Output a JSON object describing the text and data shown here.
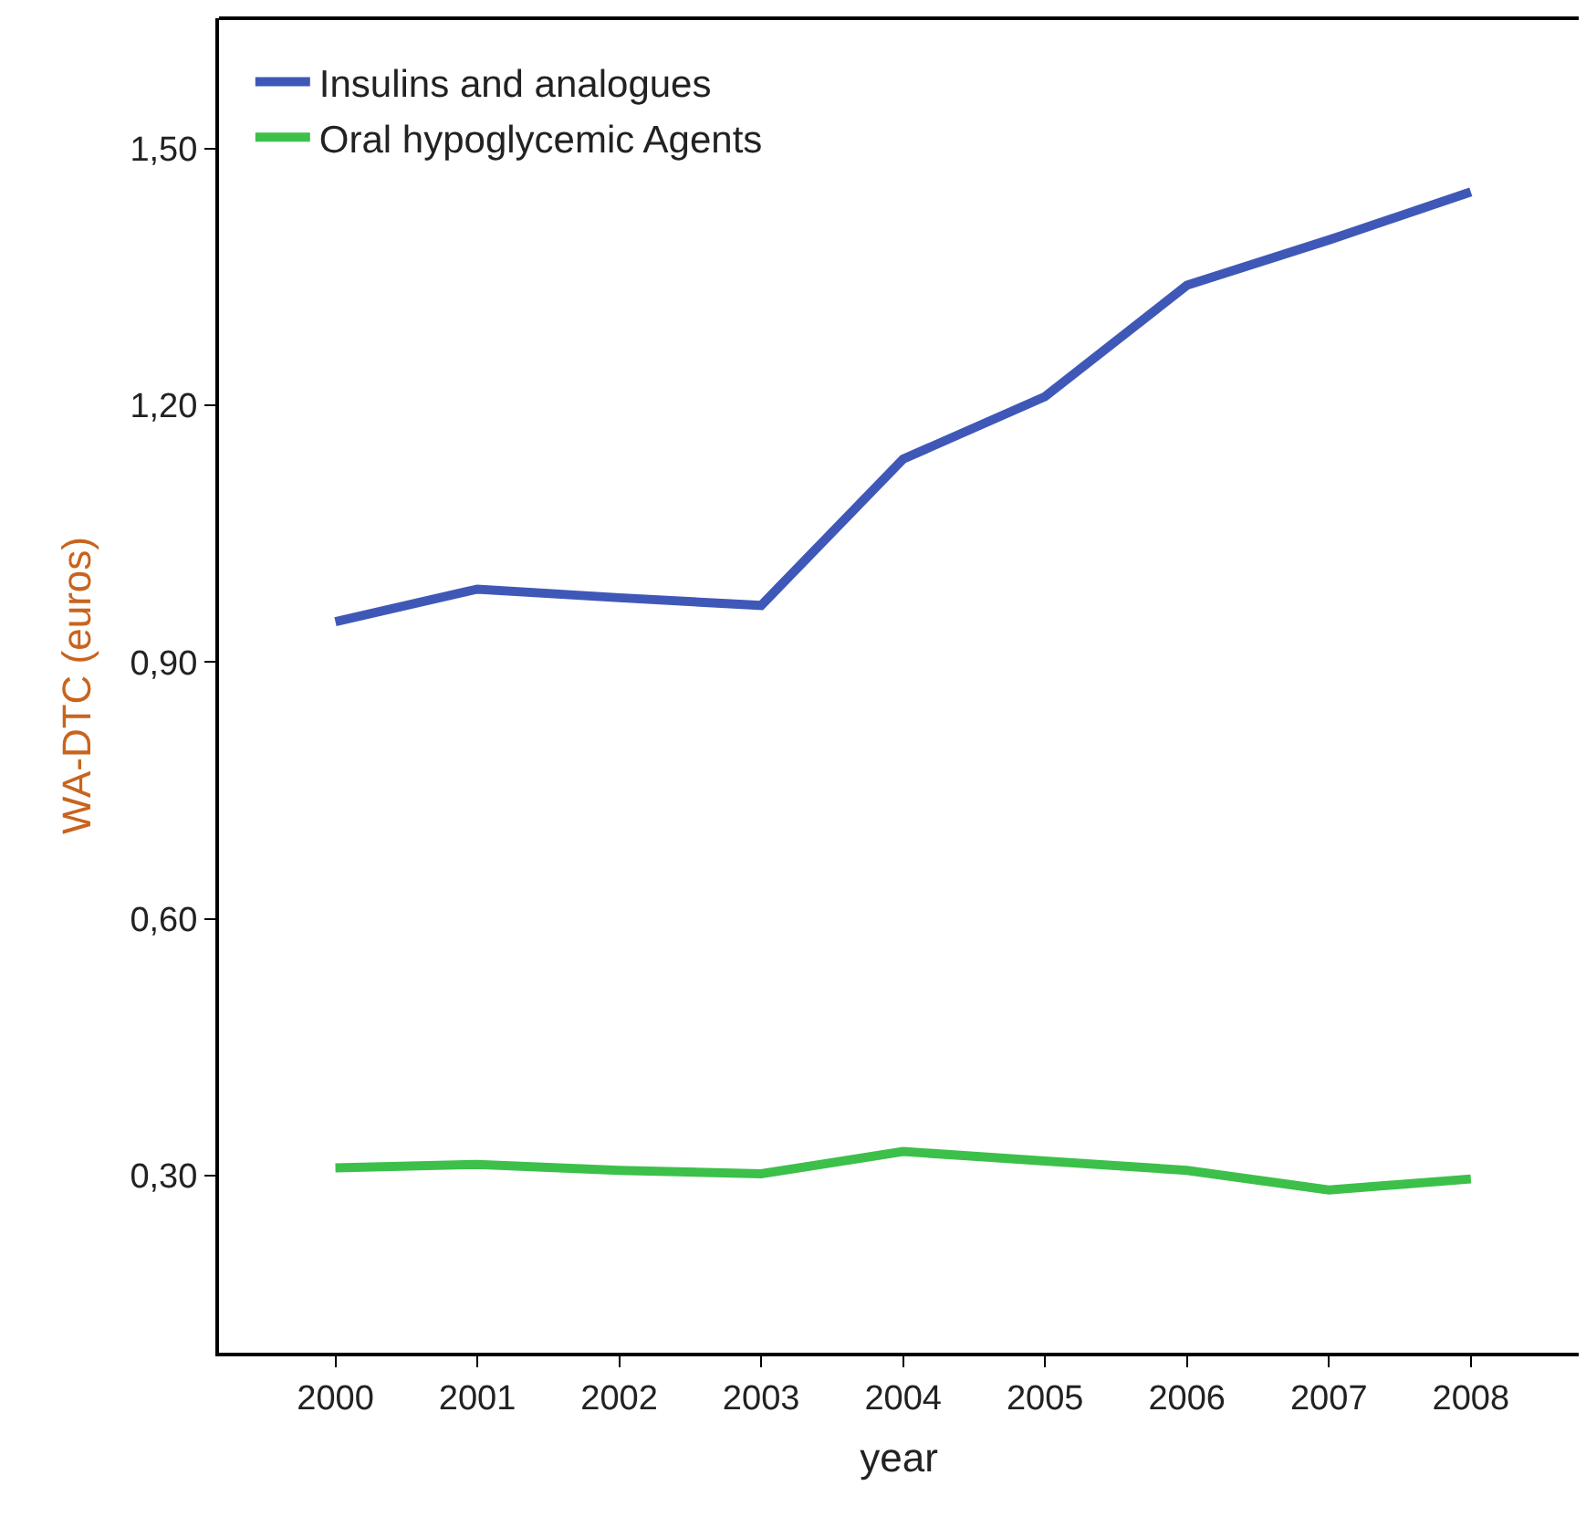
{
  "chart_data": {
    "type": "line",
    "xlabel": "year",
    "ylabel": "WA-DTC (euros)",
    "x": [
      2000,
      2001,
      2002,
      2003,
      2004,
      2005,
      2006,
      2007,
      2008
    ],
    "series": [
      {
        "name": "Insulins and analogues",
        "color": "#3f58b8",
        "values": [
          0.947,
          0.985,
          0.975,
          0.966,
          1.137,
          1.21,
          1.34,
          1.393,
          1.449
        ]
      },
      {
        "name": "Oral hypoglycemic Agents",
        "color": "#3cc04a",
        "values": [
          0.309,
          0.313,
          0.306,
          0.302,
          0.328,
          0.317,
          0.306,
          0.283,
          0.296
        ]
      }
    ],
    "xlim": [
      1999.18,
      2008.76
    ],
    "ylim": [
      0.093,
      1.652
    ],
    "xticks": [
      2000,
      2001,
      2002,
      2003,
      2004,
      2005,
      2006,
      2007,
      2008
    ],
    "yticks": [
      {
        "value": 0.3,
        "label": "0,30"
      },
      {
        "value": 0.6,
        "label": "0,60"
      },
      {
        "value": 0.9,
        "label": "0,90"
      },
      {
        "value": 1.2,
        "label": "1,20"
      },
      {
        "value": 1.5,
        "label": "1,50"
      }
    ],
    "legend": "top left",
    "marker": "none",
    "line_style": "solid"
  }
}
